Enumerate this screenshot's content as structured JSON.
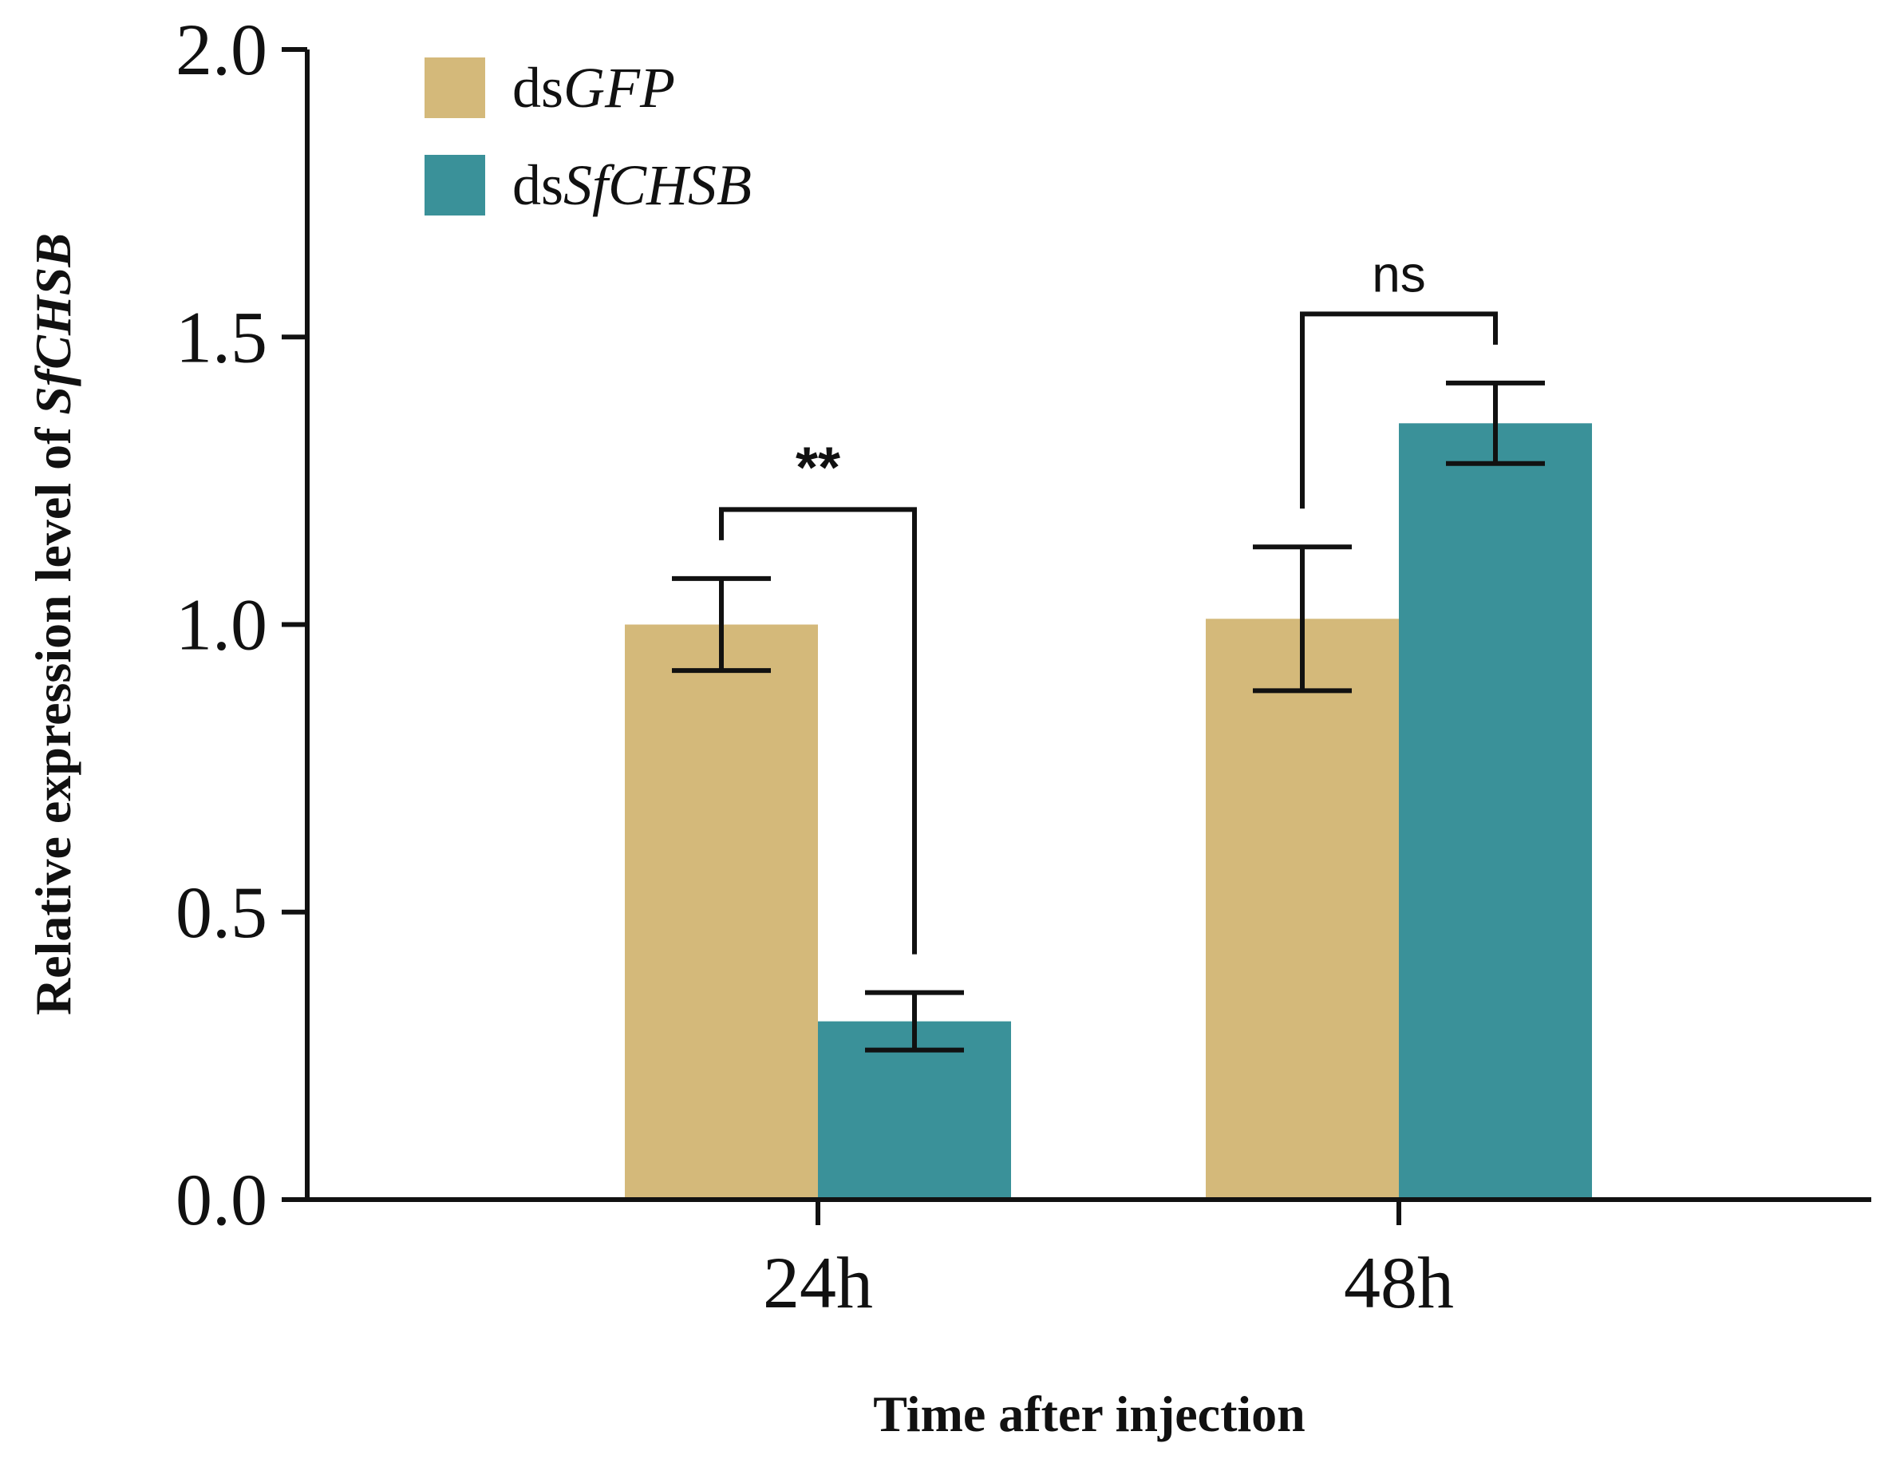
{
  "chart_data": {
    "type": "bar",
    "categories": [
      "24h",
      "48h"
    ],
    "series": [
      {
        "name_prefix": "ds",
        "name_italic": "GFP",
        "color": "#D4B97A",
        "values": [
          1.0,
          1.01
        ],
        "errors": [
          0.08,
          0.125
        ]
      },
      {
        "name_prefix": "ds",
        "name_italic": "SfCHSB",
        "color": "#3A9199",
        "values": [
          0.31,
          1.35
        ],
        "errors": [
          0.05,
          0.07
        ]
      }
    ],
    "significance": [
      {
        "category": "24h",
        "label": "**"
      },
      {
        "category": "48h",
        "label": "ns"
      }
    ],
    "ylabel_prefix": "Relative expression level of ",
    "ylabel_italic": "SfCHSB",
    "xlabel": "Time after injection",
    "ylim": [
      0,
      2.0
    ],
    "yticks": [
      "0.0",
      "0.5",
      "1.0",
      "1.5",
      "2.0"
    ],
    "legend_position": "top-left",
    "grid": false
  }
}
